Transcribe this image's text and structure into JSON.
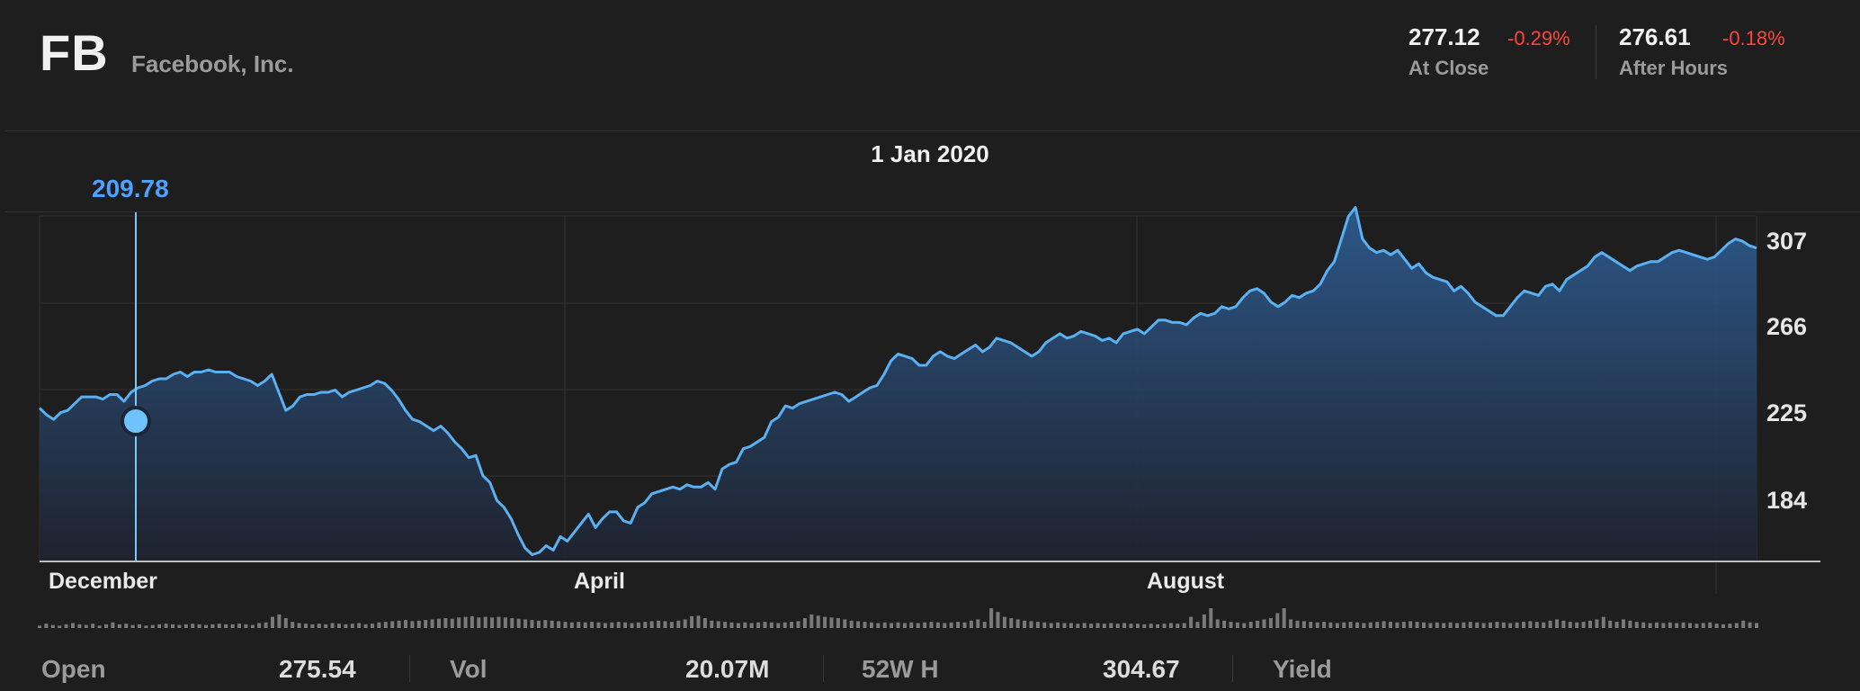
{
  "header": {
    "symbol": "FB",
    "company": "Facebook, Inc.",
    "close": {
      "price": "277.12",
      "change": "-0.29%",
      "label": "At Close"
    },
    "after_hours": {
      "price": "276.61",
      "change": "-0.18%",
      "label": "After Hours"
    }
  },
  "cursor": {
    "date": "1 Jan 2020",
    "value": "209.78"
  },
  "colors": {
    "line": "#5ab0f0",
    "marker": "#6ec3ff",
    "negative": "#ff453a",
    "value_text": "#4ea1ff"
  },
  "stats": [
    {
      "label": "Open",
      "value": "275.54"
    },
    {
      "label": "Vol",
      "value": "20.07M"
    },
    {
      "label": "52W H",
      "value": "304.67"
    },
    {
      "label": "Yield",
      "value": ""
    }
  ],
  "chart_data": {
    "type": "area",
    "title": "",
    "x_tick_labels": [
      "December",
      "April",
      "August"
    ],
    "y_tick_labels": [
      307,
      266,
      225,
      184
    ],
    "ylim": [
      143,
      307
    ],
    "grid": true,
    "cursor_x": "1 Jan 2020",
    "cursor_value": 209.78,
    "month_starts": [
      "Dec 2019",
      "Apr 2020",
      "Aug 2020"
    ],
    "series": [
      {
        "values": [
          211,
          208,
          206,
          209,
          210,
          213,
          216,
          216,
          216,
          215,
          217,
          217,
          214,
          218,
          220,
          221,
          223,
          224,
          224,
          226,
          227,
          225,
          227,
          227,
          228,
          227,
          227,
          227,
          225,
          224,
          223,
          221,
          223,
          226,
          218,
          210,
          212,
          216,
          217,
          217,
          218,
          218,
          219,
          216,
          218,
          219,
          220,
          221,
          223,
          222,
          219,
          215,
          210,
          206,
          205,
          203,
          201,
          203,
          200,
          196,
          193,
          189,
          190,
          181,
          178,
          170,
          167,
          162,
          155,
          149,
          146,
          147,
          150,
          148,
          154,
          152,
          156,
          160,
          164,
          158,
          162,
          165,
          165,
          161,
          160,
          167,
          169,
          173,
          174,
          175,
          176,
          175,
          177,
          176,
          176,
          178,
          175,
          184,
          186,
          187,
          193,
          194,
          196,
          198,
          205,
          207,
          212,
          211,
          213,
          214,
          215,
          216,
          217,
          218,
          217,
          214,
          216,
          218,
          220,
          221,
          226,
          232,
          235,
          234,
          233,
          230,
          230,
          234,
          236,
          234,
          233,
          235,
          237,
          239,
          236,
          238,
          242,
          241,
          240,
          238,
          236,
          234,
          236,
          240,
          242,
          244,
          242,
          243,
          245,
          244,
          243,
          241,
          242,
          240,
          244,
          245,
          246,
          244,
          247,
          250,
          250,
          249,
          249,
          248,
          251,
          253,
          252,
          253,
          256,
          255,
          256,
          260,
          263,
          264,
          262,
          258,
          256,
          258,
          261,
          260,
          262,
          263,
          266,
          272,
          276,
          286,
          296,
          300,
          286,
          282,
          280,
          281,
          279,
          281,
          277,
          273,
          275,
          271,
          269,
          268,
          267,
          263,
          265,
          262,
          258,
          256,
          254,
          252,
          252,
          256,
          260,
          263,
          262,
          261,
          265,
          266,
          263,
          268,
          270,
          272,
          274,
          278,
          280,
          278,
          276,
          274,
          272,
          274,
          275,
          276,
          276,
          278,
          280,
          281,
          280,
          279,
          278,
          277,
          278,
          281,
          284,
          286,
          285,
          283,
          282
        ]
      }
    ],
    "volume_relative": [
      0.2,
      0.35,
      0.25,
      0.2,
      0.3,
      0.4,
      0.3,
      0.25,
      0.35,
      0.2,
      0.3,
      0.45,
      0.3,
      0.35,
      0.25,
      0.3,
      0.2,
      0.25,
      0.3,
      0.35,
      0.3,
      0.25,
      0.3,
      0.35,
      0.3,
      0.25,
      0.3,
      0.35,
      0.3,
      0.3,
      0.35,
      0.3,
      0.25,
      0.4,
      0.45,
      0.9,
      1.1,
      0.8,
      0.5,
      0.4,
      0.35,
      0.3,
      0.35,
      0.3,
      0.4,
      0.35,
      0.3,
      0.35,
      0.4,
      0.3,
      0.35,
      0.45,
      0.5,
      0.55,
      0.6,
      0.65,
      0.55,
      0.6,
      0.65,
      0.7,
      0.75,
      0.8,
      0.75,
      0.85,
      0.9,
      0.95,
      0.85,
      0.9,
      0.85,
      0.9,
      0.85,
      0.8,
      0.75,
      0.7,
      0.65,
      0.6,
      0.65,
      0.6,
      0.55,
      0.5,
      0.45,
      0.5,
      0.45,
      0.5,
      0.45,
      0.4,
      0.45,
      0.5,
      0.45,
      0.4,
      0.45,
      0.5,
      0.55,
      0.6,
      0.55,
      0.5,
      0.6,
      0.7,
      0.95,
      1.0,
      0.8,
      0.6,
      0.55,
      0.5,
      0.45,
      0.4,
      0.45,
      0.4,
      0.45,
      0.5,
      0.45,
      0.4,
      0.45,
      0.5,
      0.55,
      0.8,
      1.1,
      1.0,
      0.9,
      0.85,
      0.8,
      0.7,
      0.6,
      0.55,
      0.5,
      0.45,
      0.4,
      0.45,
      0.4,
      0.45,
      0.4,
      0.45,
      0.4,
      0.45,
      0.5,
      0.45,
      0.4,
      0.45,
      0.5,
      0.45,
      0.6,
      0.7,
      0.5,
      1.6,
      1.3,
      0.9,
      0.8,
      0.7,
      0.6,
      0.55,
      0.5,
      0.45,
      0.4,
      0.45,
      0.4,
      0.4,
      0.35,
      0.4,
      0.35,
      0.4,
      0.35,
      0.4,
      0.35,
      0.4,
      0.35,
      0.35,
      0.3,
      0.35,
      0.3,
      0.35,
      0.4,
      0.35,
      0.4,
      0.9,
      0.5,
      1.1,
      1.6,
      0.7,
      0.6,
      0.5,
      0.45,
      0.4,
      0.5,
      0.6,
      0.7,
      0.8,
      1.2,
      1.6,
      0.7,
      0.6,
      0.55,
      0.5,
      0.45,
      0.5,
      0.45,
      0.4,
      0.45,
      0.5,
      0.45,
      0.4,
      0.45,
      0.5,
      0.55,
      0.5,
      0.45,
      0.5,
      0.55,
      0.5,
      0.45,
      0.4,
      0.45,
      0.4,
      0.45,
      0.4,
      0.45,
      0.5,
      0.45,
      0.4,
      0.45,
      0.5,
      0.45,
      0.4,
      0.45,
      0.5,
      0.55,
      0.5,
      0.45,
      0.6,
      0.7,
      0.6,
      0.5,
      0.45,
      0.5,
      0.6,
      0.7,
      0.9,
      0.6,
      0.5,
      0.7,
      0.6,
      0.5,
      0.45,
      0.4,
      0.45,
      0.4,
      0.45,
      0.4,
      0.45,
      0.4,
      0.35,
      0.4,
      0.45,
      0.35,
      0.3,
      0.35,
      0.4,
      0.6,
      0.45,
      0.4
    ]
  }
}
